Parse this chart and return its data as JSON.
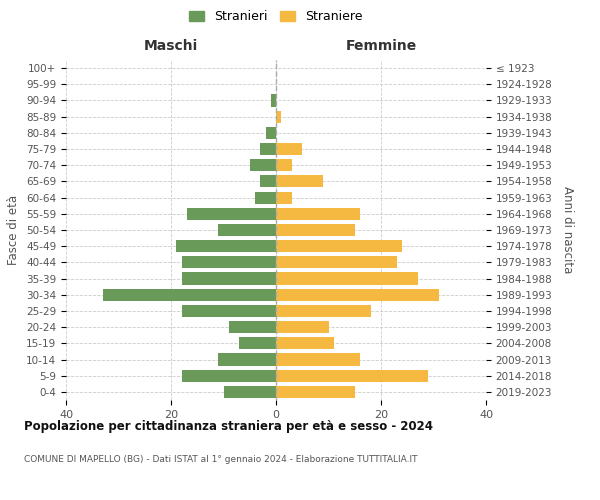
{
  "age_groups": [
    "0-4",
    "5-9",
    "10-14",
    "15-19",
    "20-24",
    "25-29",
    "30-34",
    "35-39",
    "40-44",
    "45-49",
    "50-54",
    "55-59",
    "60-64",
    "65-69",
    "70-74",
    "75-79",
    "80-84",
    "85-89",
    "90-94",
    "95-99",
    "100+"
  ],
  "birth_years": [
    "2019-2023",
    "2014-2018",
    "2009-2013",
    "2004-2008",
    "1999-2003",
    "1994-1998",
    "1989-1993",
    "1984-1988",
    "1979-1983",
    "1974-1978",
    "1969-1973",
    "1964-1968",
    "1959-1963",
    "1954-1958",
    "1949-1953",
    "1944-1948",
    "1939-1943",
    "1934-1938",
    "1929-1933",
    "1924-1928",
    "≤ 1923"
  ],
  "maschi": [
    10,
    18,
    11,
    7,
    9,
    18,
    33,
    18,
    18,
    19,
    11,
    17,
    4,
    3,
    5,
    3,
    2,
    0,
    1,
    0,
    0
  ],
  "femmine": [
    15,
    29,
    16,
    11,
    10,
    18,
    31,
    27,
    23,
    24,
    15,
    16,
    3,
    9,
    3,
    5,
    0,
    1,
    0,
    0,
    0
  ],
  "maschi_color": "#6a9a5a",
  "femmine_color": "#f5b942",
  "background_color": "#ffffff",
  "grid_color": "#cccccc",
  "title": "Popolazione per cittadinanza straniera per età e sesso - 2024",
  "subtitle": "COMUNE DI MAPELLO (BG) - Dati ISTAT al 1° gennaio 2024 - Elaborazione TUTTITALIA.IT",
  "xlabel_left": "Maschi",
  "xlabel_right": "Femmine",
  "ylabel_left": "Fasce di età",
  "ylabel_right": "Anni di nascita",
  "legend_maschi": "Stranieri",
  "legend_femmine": "Straniere",
  "xlim": 40,
  "bar_height": 0.75
}
